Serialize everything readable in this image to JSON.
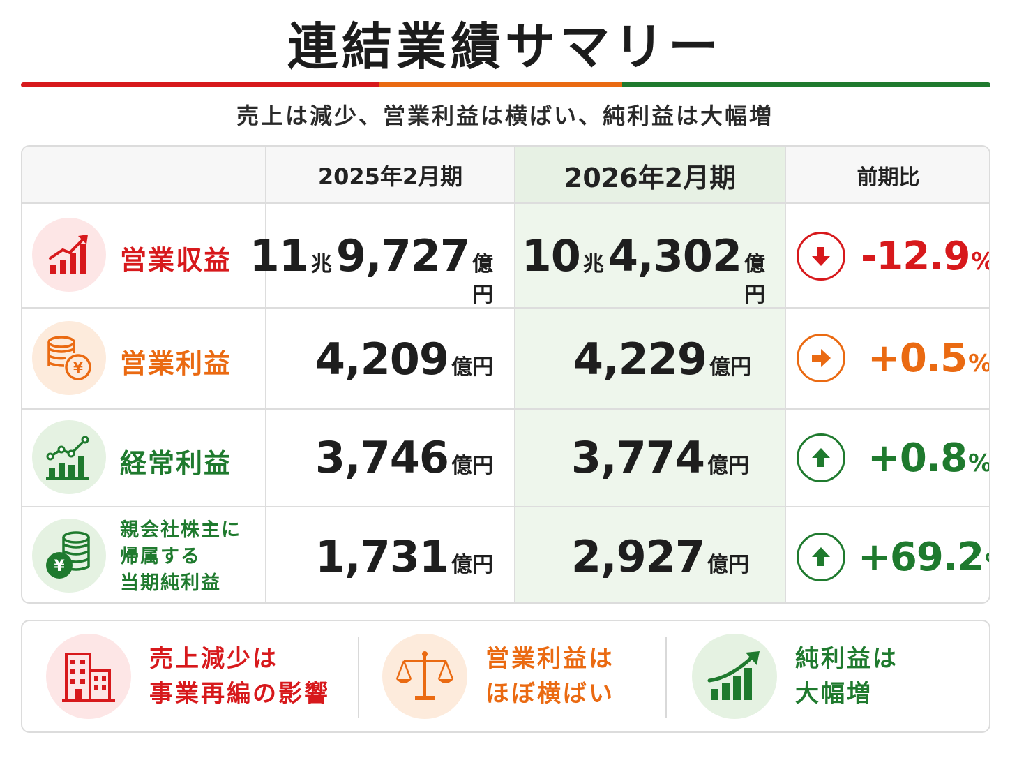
{
  "title": "連結業績サマリー",
  "subtitle": "売上は減少、営業利益は横ばい、純利益は大幅増",
  "colors": {
    "red": "#d7191c",
    "orange": "#ea6a12",
    "green": "#1f7a2e"
  },
  "table": {
    "headers": {
      "period_prev": "2025年2月期",
      "period_curr": "2026年2月期",
      "change": "前期比"
    },
    "rows": [
      {
        "label": "営業収益",
        "icon": "bar-chart-up-icon",
        "prev": {
          "chou": "11",
          "chou_unit": "兆",
          "num": "9,727",
          "unit": "億円"
        },
        "curr": {
          "chou": "10",
          "chou_unit": "兆",
          "num": "4,302",
          "unit": "億円"
        },
        "change": {
          "value": "-12.9",
          "sign": "%",
          "direction": "down"
        }
      },
      {
        "label": "営業利益",
        "icon": "coins-yen-icon",
        "prev": {
          "num": "4,209",
          "unit": "億円"
        },
        "curr": {
          "num": "4,229",
          "unit": "億円"
        },
        "change": {
          "value": "+0.5",
          "sign": "%",
          "direction": "flat"
        }
      },
      {
        "label": "経常利益",
        "icon": "line-bar-chart-icon",
        "prev": {
          "num": "3,746",
          "unit": "億円"
        },
        "curr": {
          "num": "3,774",
          "unit": "億円"
        },
        "change": {
          "value": "+0.8",
          "sign": "%",
          "direction": "up"
        }
      },
      {
        "label_lines": [
          "親会社株主に",
          "帰属する",
          "当期純利益"
        ],
        "icon": "yen-coin-stack-icon",
        "prev": {
          "num": "1,731",
          "unit": "億円"
        },
        "curr": {
          "num": "2,927",
          "unit": "億円"
        },
        "change": {
          "value": "+69.2",
          "sign": "%",
          "direction": "up"
        }
      }
    ]
  },
  "highlights": [
    {
      "lines": [
        "売上減少は",
        "事業再編の影響"
      ],
      "icon": "buildings-icon"
    },
    {
      "lines": [
        "営業利益は",
        "ほぼ横ばい"
      ],
      "icon": "balance-scale-icon"
    },
    {
      "lines": [
        "純利益は",
        "大幅増"
      ],
      "icon": "growth-chart-icon"
    }
  ]
}
